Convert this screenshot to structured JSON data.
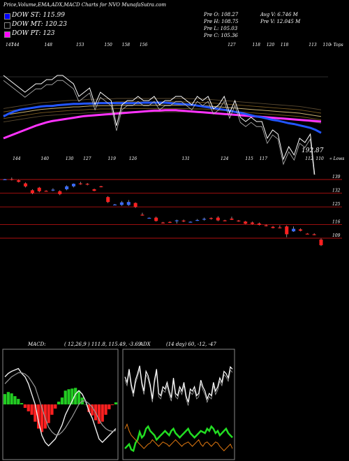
{
  "header": {
    "title": "Price,Volume,EMA,ADX,MACD Charts for NVO MunafaSutra.com"
  },
  "legend": [
    {
      "label": "DOW ST: 115.99",
      "color": "#0000ff"
    },
    {
      "label": "DOW MT: 120.23",
      "color": "#000000"
    },
    {
      "label": "DOW PT: 123",
      "color": "#ff00ff"
    }
  ],
  "stats": {
    "open": "Pre   O: 108.27",
    "high": "Pre   H: 108.75",
    "low": "Pre   L: 105.03",
    "close": "Pre   C: 105.36",
    "avg_vol": "Avg V: 6.746  M",
    "pre_vol": "Pre   V: 12.045 M"
  },
  "price_chart": {
    "top_label": "« Tops",
    "bottom_label": "« Lows",
    "last_value_label": "192.87",
    "top_ticks": [
      {
        "label": "147",
        "x": 0.0
      },
      {
        "label": "144",
        "x": 0.8
      },
      {
        "label": "148",
        "x": 5.5
      },
      {
        "label": "153",
        "x": 10.0
      },
      {
        "label": "150",
        "x": 14.0
      },
      {
        "label": "158",
        "x": 16.5
      },
      {
        "label": "156",
        "x": 19.0
      },
      {
        "label": "127",
        "x": 31.5
      },
      {
        "label": "118",
        "x": 35.0
      },
      {
        "label": "120",
        "x": 37.0
      },
      {
        "label": "118",
        "x": 39.0
      },
      {
        "label": "113",
        "x": 43.0
      },
      {
        "label": "110",
        "x": 45.0
      }
    ],
    "bottom_ticks": [
      {
        "label": "144",
        "x": 1.0
      },
      {
        "label": "140",
        "x": 5.0
      },
      {
        "label": "130",
        "x": 8.5
      },
      {
        "label": "127",
        "x": 11.0
      },
      {
        "label": "119",
        "x": 14.5
      },
      {
        "label": "126",
        "x": 17.5
      },
      {
        "label": "131",
        "x": 25.0
      },
      {
        "label": "124",
        "x": 30.5
      },
      {
        "label": "115",
        "x": 34.0
      },
      {
        "label": "117",
        "x": 36.0
      },
      {
        "label": "112",
        "x": 42.5
      },
      {
        "label": "110",
        "x": 44.0
      }
    ]
  },
  "candles": {
    "axis_labels": [
      {
        "label": "139",
        "value": 139
      },
      {
        "label": "132",
        "value": 132
      },
      {
        "label": "125",
        "value": 125
      },
      {
        "label": "116",
        "value": 116
      },
      {
        "label": "109",
        "value": 109
      }
    ],
    "ohlc": [
      {
        "o": 139.0,
        "h": 139.3,
        "l": 138.8,
        "c": 139.1
      },
      {
        "o": 139.2,
        "h": 140.0,
        "l": 138.5,
        "c": 139.0
      },
      {
        "o": 138.6,
        "h": 138.9,
        "l": 137.5,
        "c": 137.8
      },
      {
        "o": 137.0,
        "h": 137.5,
        "l": 135.0,
        "c": 135.5
      },
      {
        "o": 133.5,
        "h": 134.0,
        "l": 131.5,
        "c": 132.0
      },
      {
        "o": 134.8,
        "h": 135.2,
        "l": 132.5,
        "c": 133.0
      },
      {
        "o": 133.2,
        "h": 133.5,
        "l": 132.8,
        "c": 133.0
      },
      {
        "o": 133.5,
        "h": 134.5,
        "l": 133.0,
        "c": 133.8
      },
      {
        "o": 133.0,
        "h": 133.5,
        "l": 131.0,
        "c": 131.5
      },
      {
        "o": 134.0,
        "h": 136.0,
        "l": 133.5,
        "c": 135.5
      },
      {
        "o": 135.5,
        "h": 137.0,
        "l": 135.0,
        "c": 136.8
      },
      {
        "o": 137.0,
        "h": 137.8,
        "l": 136.3,
        "c": 136.8
      },
      {
        "o": 136.8,
        "h": 137.2,
        "l": 136.0,
        "c": 136.5
      },
      {
        "o": 134.0,
        "h": 134.3,
        "l": 133.0,
        "c": 133.2
      },
      {
        "o": 135.5,
        "h": 135.8,
        "l": 135.0,
        "c": 135.3
      },
      {
        "o": 130.0,
        "h": 130.5,
        "l": 127.0,
        "c": 127.5
      },
      {
        "o": 126.0,
        "h": 126.5,
        "l": 125.8,
        "c": 126.2
      },
      {
        "o": 126.0,
        "h": 128.0,
        "l": 125.5,
        "c": 127.3
      },
      {
        "o": 126.0,
        "h": 128.5,
        "l": 125.5,
        "c": 127.5
      },
      {
        "o": 127.0,
        "h": 127.3,
        "l": 124.5,
        "c": 125.0
      },
      {
        "o": 121.0,
        "h": 122.0,
        "l": 120.5,
        "c": 120.8
      },
      {
        "o": 119.3,
        "h": 119.6,
        "l": 119.0,
        "c": 119.4
      },
      {
        "o": 119.5,
        "h": 120.0,
        "l": 117.5,
        "c": 117.8
      },
      {
        "o": 117.0,
        "h": 117.3,
        "l": 116.5,
        "c": 116.8
      },
      {
        "o": 117.3,
        "h": 117.6,
        "l": 116.8,
        "c": 117.1
      },
      {
        "o": 117.8,
        "h": 118.5,
        "l": 116.5,
        "c": 118.1
      },
      {
        "o": 118.0,
        "h": 118.5,
        "l": 117.2,
        "c": 117.9
      },
      {
        "o": 117.3,
        "h": 117.6,
        "l": 117.0,
        "c": 117.4
      },
      {
        "o": 118.3,
        "h": 118.8,
        "l": 117.8,
        "c": 118.3
      },
      {
        "o": 118.6,
        "h": 119.5,
        "l": 118.0,
        "c": 118.9
      },
      {
        "o": 119.3,
        "h": 119.6,
        "l": 118.5,
        "c": 119.0
      },
      {
        "o": 119.5,
        "h": 120.2,
        "l": 117.7,
        "c": 118.1
      },
      {
        "o": 118.1,
        "h": 118.4,
        "l": 117.6,
        "c": 117.9
      },
      {
        "o": 119.0,
        "h": 120.0,
        "l": 118.3,
        "c": 118.4
      },
      {
        "o": 118.0,
        "h": 118.3,
        "l": 117.4,
        "c": 117.6
      },
      {
        "o": 117.5,
        "h": 117.8,
        "l": 116.2,
        "c": 116.4
      },
      {
        "o": 117.0,
        "h": 117.5,
        "l": 116.0,
        "c": 116.3
      },
      {
        "o": 116.5,
        "h": 117.0,
        "l": 115.5,
        "c": 115.8
      },
      {
        "o": 115.6,
        "h": 116.0,
        "l": 115.0,
        "c": 115.3
      },
      {
        "o": 114.8,
        "h": 115.2,
        "l": 114.0,
        "c": 114.2
      },
      {
        "o": 114.5,
        "h": 115.5,
        "l": 114.0,
        "c": 114.4
      },
      {
        "o": 115.0,
        "h": 115.5,
        "l": 109.5,
        "c": 111.0
      },
      {
        "o": 112.5,
        "h": 115.0,
        "l": 112.2,
        "c": 113.8
      },
      {
        "o": 113.5,
        "h": 114.0,
        "l": 112.5,
        "c": 112.8
      },
      {
        "o": 111.3,
        "h": 111.6,
        "l": 111.0,
        "c": 111.2
      },
      {
        "o": 111.0,
        "h": 111.5,
        "l": 110.5,
        "c": 110.8
      },
      {
        "o": 108.3,
        "h": 108.8,
        "l": 105.0,
        "c": 105.4
      }
    ]
  },
  "price_lines": {
    "price": [
      144,
      143,
      142,
      141,
      140,
      141,
      142,
      142,
      143,
      143,
      144,
      144,
      143,
      142,
      139,
      140,
      141,
      137,
      140,
      139,
      138,
      132,
      137,
      138,
      138,
      139,
      138,
      138,
      139,
      137,
      138,
      138,
      139,
      139,
      138,
      137,
      139,
      138,
      139,
      136,
      137,
      139,
      135,
      138,
      134,
      133,
      134,
      133,
      133,
      129,
      131,
      130,
      124,
      127,
      125,
      129,
      128,
      130,
      118,
      115
    ],
    "st": [
      134.2,
      134.9,
      135.4,
      135.8,
      136.0,
      136.2,
      136.4,
      136.6,
      136.7,
      136.7,
      136.9,
      137.0,
      137.1,
      137.2,
      137.2,
      137.3,
      137.3,
      137.3,
      137.4,
      137.4,
      137.4,
      137.4,
      137.4,
      137.4,
      137.4,
      137.4,
      137.5,
      137.5,
      137.5,
      137.5,
      137.5,
      137.4,
      137.3,
      137.2,
      137.1,
      137.0,
      136.8,
      136.6,
      136.4,
      136.2,
      136.0,
      135.8,
      135.6,
      135.3,
      135.1,
      134.8,
      134.5,
      134.2,
      134.0,
      133.7,
      133.4,
      133.2,
      132.9,
      132.6,
      132.4,
      132.1,
      131.8,
      131.5,
      131.0,
      130.3
    ],
    "mt": [
      134.5,
      134.7,
      134.9,
      135.1,
      135.3,
      135.5,
      135.7,
      135.9,
      136.0,
      136.1,
      136.2,
      136.3,
      136.4,
      136.5,
      136.5,
      136.6,
      136.7,
      136.7,
      136.8,
      136.8,
      136.8,
      136.9,
      136.9,
      136.9,
      136.9,
      136.9,
      136.9,
      136.9,
      136.9,
      136.9,
      136.9,
      136.9,
      136.9,
      136.9,
      136.9,
      136.8,
      136.8,
      136.8,
      136.7,
      136.6,
      136.5,
      136.4,
      136.3,
      136.2,
      136.1,
      136.0,
      135.9,
      135.8,
      135.7,
      135.6,
      135.5,
      135.4,
      135.3,
      135.2,
      135.1,
      135.0,
      134.8,
      134.6,
      134.4,
      134.2
    ],
    "pt": [
      129.0,
      129.5,
      130.0,
      130.5,
      131.0,
      131.5,
      132.0,
      132.4,
      132.8,
      133.1,
      133.3,
      133.5,
      133.7,
      133.9,
      134.1,
      134.3,
      134.4,
      134.5,
      134.6,
      134.7,
      134.8,
      134.9,
      135.0,
      135.1,
      135.2,
      135.3,
      135.4,
      135.5,
      135.6,
      135.6,
      135.7,
      135.7,
      135.7,
      135.6,
      135.5,
      135.4,
      135.3,
      135.2,
      135.1,
      135.0,
      134.9,
      134.8,
      134.7,
      134.6,
      134.5,
      134.4,
      134.3,
      134.2,
      134.1,
      134.0,
      133.9,
      133.8,
      133.7,
      133.6,
      133.5,
      133.4,
      133.3,
      133.2,
      133.1,
      133.0
    ]
  },
  "macd": {
    "label": "MACD:",
    "params": "( 12,26,9 ) 111.8, 115.49, -3.69",
    "macd_line": [
      4.0,
      4.5,
      4.8,
      5.0,
      5.2,
      4.5,
      4.0,
      3.0,
      1.5,
      0,
      -2.5,
      -4.5,
      -5.5,
      -6.0,
      -5.5,
      -5.0,
      -4.0,
      -3.0,
      -1.5,
      -0.5,
      0.5,
      1.5,
      2.0,
      1.5,
      0.5,
      -1.0,
      -2.0,
      -3.5,
      -5.0,
      -5.5,
      -5.0,
      -4.5,
      -4.0,
      -3.5
    ],
    "signal_line": [
      3.0,
      3.5,
      4.0,
      4.3,
      4.6,
      4.6,
      4.4,
      4.0,
      3.3,
      2.5,
      1.0,
      -0.5,
      -2.0,
      -3.3,
      -4.0,
      -4.4,
      -4.4,
      -4.0,
      -3.4,
      -2.6,
      -1.8,
      -0.9,
      0.0,
      0.5,
      0.5,
      0.1,
      -0.4,
      -1.2,
      -2.2,
      -3.0,
      -3.5,
      -3.8,
      -3.9,
      -3.8
    ],
    "histogram": [
      1.5,
      1.8,
      1.6,
      1.2,
      0.8,
      0.2,
      -0.5,
      -1.0,
      -1.5,
      -2.5,
      -3.5,
      -4.0,
      -3.5,
      -2.7,
      -1.5,
      -0.6,
      0.4,
      1.0,
      2.0,
      2.2,
      2.3,
      2.4,
      2.0,
      1.0,
      0.0,
      -1.1,
      -1.6,
      -2.3,
      -2.8,
      -2.5,
      -1.5,
      -0.7,
      -0.1,
      0.3
    ],
    "range": [
      -8,
      8
    ]
  },
  "adx": {
    "label": "ADX",
    "params": "(14 day) 60, -12, -47",
    "adx_line": [
      75,
      70,
      82,
      68,
      60,
      72,
      78,
      85,
      70,
      62,
      80,
      76,
      68,
      55,
      72,
      82,
      60,
      58,
      66,
      64,
      70,
      62,
      56,
      74,
      60,
      58,
      66,
      62,
      70,
      58,
      52,
      64,
      62,
      66,
      58,
      60,
      72,
      66,
      62,
      55,
      60,
      58,
      70,
      62,
      66,
      74,
      70,
      80,
      78,
      74,
      84,
      82
    ],
    "plus_di": [
      10,
      12,
      14,
      9,
      8,
      15,
      18,
      25,
      20,
      22,
      28,
      30,
      26,
      24,
      22,
      18,
      20,
      22,
      24,
      26,
      24,
      22,
      26,
      28,
      24,
      22,
      20,
      22,
      24,
      26,
      28,
      24,
      22,
      20,
      22,
      24,
      26,
      25,
      24,
      28,
      26,
      30,
      28,
      24,
      26,
      22,
      24,
      26,
      28,
      24,
      22,
      20
    ],
    "minus_di": [
      28,
      32,
      26,
      22,
      20,
      18,
      16,
      14,
      12,
      10,
      12,
      14,
      15,
      18,
      16,
      14,
      12,
      14,
      16,
      15,
      14,
      12,
      14,
      16,
      18,
      16,
      14,
      12,
      14,
      15,
      16,
      14,
      12,
      14,
      16,
      18,
      14,
      12,
      15,
      16,
      14,
      12,
      14,
      16,
      15,
      12,
      10,
      8,
      10,
      12,
      14,
      10
    ],
    "range": [
      0,
      100
    ]
  }
}
